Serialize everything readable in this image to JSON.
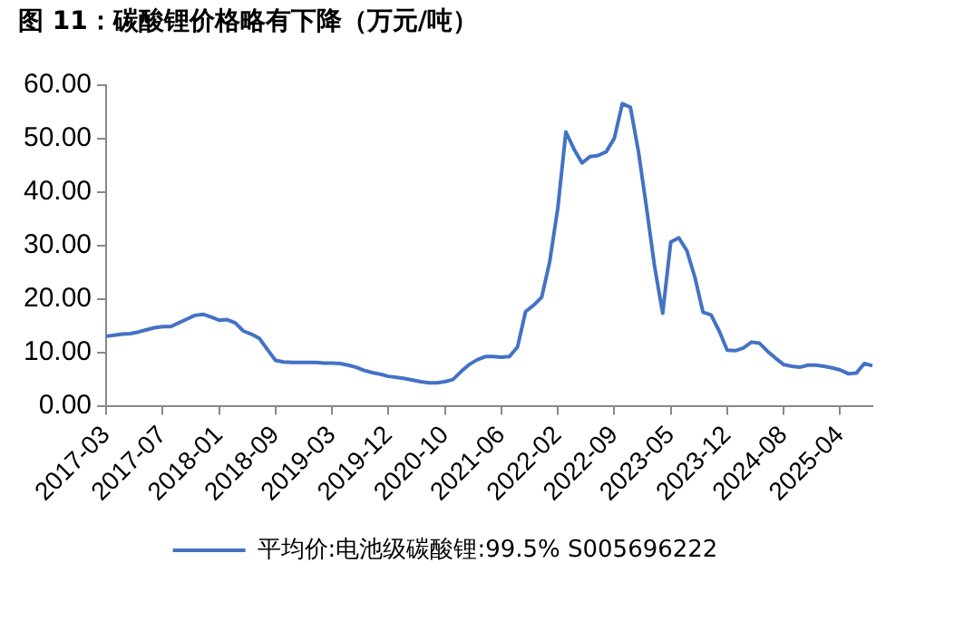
{
  "chart_data": {
    "type": "line",
    "title": "图 11：碳酸锂价格略有下降（万元/吨）",
    "categories": [
      "2017-03",
      null,
      null,
      null,
      null,
      null,
      null,
      "2017-07",
      null,
      null,
      null,
      null,
      null,
      null,
      "2018-01",
      null,
      null,
      null,
      null,
      null,
      null,
      "2018-09",
      null,
      null,
      null,
      null,
      null,
      null,
      "2019-03",
      null,
      null,
      null,
      null,
      null,
      null,
      "2019-12",
      null,
      null,
      null,
      null,
      null,
      null,
      "2020-10",
      null,
      null,
      null,
      null,
      null,
      null,
      "2021-06",
      null,
      null,
      null,
      null,
      null,
      null,
      "2022-02",
      null,
      null,
      null,
      null,
      null,
      null,
      "2022-09",
      null,
      null,
      null,
      null,
      null,
      null,
      "2023-05",
      null,
      null,
      null,
      null,
      null,
      null,
      "2023-12",
      null,
      null,
      null,
      null,
      null,
      null,
      "2024-08",
      null,
      null,
      null,
      null,
      null,
      null,
      "2025-04",
      null,
      null,
      null,
      null
    ],
    "series": [
      {
        "name": "平均价:电池级碳酸锂:99.5% S005696222",
        "color": "#4472c4",
        "values": [
          13.0,
          13.2,
          13.4,
          13.5,
          13.8,
          14.2,
          14.6,
          14.8,
          14.8,
          15.5,
          16.2,
          16.9,
          17.1,
          16.6,
          16.0,
          16.1,
          15.5,
          14.0,
          13.4,
          12.6,
          10.5,
          8.5,
          8.2,
          8.1,
          8.1,
          8.1,
          8.1,
          8.0,
          8.0,
          7.9,
          7.6,
          7.2,
          6.6,
          6.2,
          5.9,
          5.5,
          5.3,
          5.1,
          4.8,
          4.5,
          4.3,
          4.3,
          4.5,
          4.9,
          6.4,
          7.7,
          8.6,
          9.2,
          9.2,
          9.1,
          9.2,
          11.0,
          17.6,
          18.8,
          20.3,
          27,
          37,
          51.2,
          48,
          45.4,
          46.6,
          46.8,
          47.5,
          50.0,
          56.5,
          55.8,
          47.5,
          37,
          26,
          17.3,
          30.6,
          31.4,
          29.0,
          24,
          17.5,
          17.0,
          14.0,
          10.4,
          10.3,
          10.8,
          11.9,
          11.7,
          10.2,
          8.9,
          7.7,
          7.4,
          7.2,
          7.6,
          7.6,
          7.4,
          7.1,
          6.7,
          6.0,
          6.1,
          7.9,
          7.5
        ]
      }
    ],
    "ylim": [
      0,
      60
    ],
    "yticks": [
      {
        "value": 0,
        "label": "0.00"
      },
      {
        "value": 10,
        "label": "10.00"
      },
      {
        "value": 20,
        "label": "20.00"
      },
      {
        "value": 30,
        "label": "30.00"
      },
      {
        "value": 40,
        "label": "40.00"
      },
      {
        "value": 50,
        "label": "50.00"
      },
      {
        "value": 60,
        "label": "60.00"
      }
    ],
    "grid": false,
    "legend": "bottom",
    "marker": "none",
    "line_style": "solid"
  }
}
